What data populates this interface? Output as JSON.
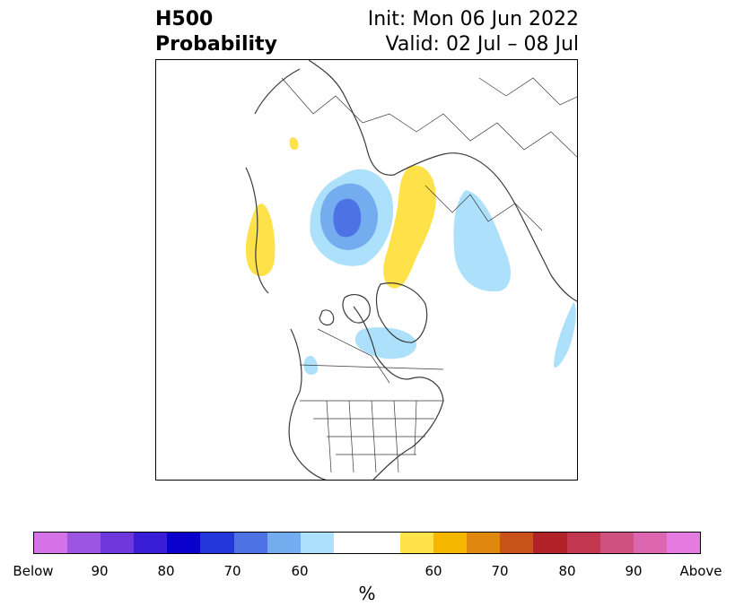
{
  "title": {
    "left_line1": "H500",
    "left_line2": "Probability",
    "right_line1": "Init: Mon 06 Jun 2022",
    "right_line2": "Valid: 02 Jul – 08 Jul"
  },
  "colorbar": {
    "colors": [
      "#d672e8",
      "#9b55e0",
      "#6e38dc",
      "#3a1dd6",
      "#0a00cd",
      "#2438d9",
      "#4c72e4",
      "#73adf0",
      "#ade0fb",
      "#ffffff",
      "#ffe14a",
      "#f5b700",
      "#e0870f",
      "#c8521a",
      "#b12228",
      "#c33650",
      "#cf517f",
      "#dd66b0",
      "#e57ae0"
    ],
    "tick_labels": [
      "Below",
      "90",
      "80",
      "70",
      "60",
      "60",
      "70",
      "80",
      "90",
      "Above"
    ],
    "unit_label": "%"
  },
  "map": {
    "anomaly_regions": [
      {
        "name": "beaufort-below-60",
        "category": "below",
        "level": 60
      },
      {
        "name": "beaufort-below-70",
        "category": "below",
        "level": 70
      },
      {
        "name": "beaufort-below-80",
        "category": "below",
        "level": 80
      },
      {
        "name": "russia-below-60",
        "category": "below",
        "level": 60
      },
      {
        "name": "hudson-below-60",
        "category": "below",
        "level": 60
      },
      {
        "name": "canada-west-below-60",
        "category": "below",
        "level": 60
      },
      {
        "name": "pacific-east-below-60",
        "category": "below",
        "level": 60
      },
      {
        "name": "scandinavia-above-60",
        "category": "above",
        "level": 60
      },
      {
        "name": "greenland-east-above-60",
        "category": "above",
        "level": 60
      },
      {
        "name": "siberia-east-above-60",
        "category": "above",
        "level": 60
      },
      {
        "name": "china-above-60",
        "category": "above",
        "level": 60
      }
    ]
  }
}
